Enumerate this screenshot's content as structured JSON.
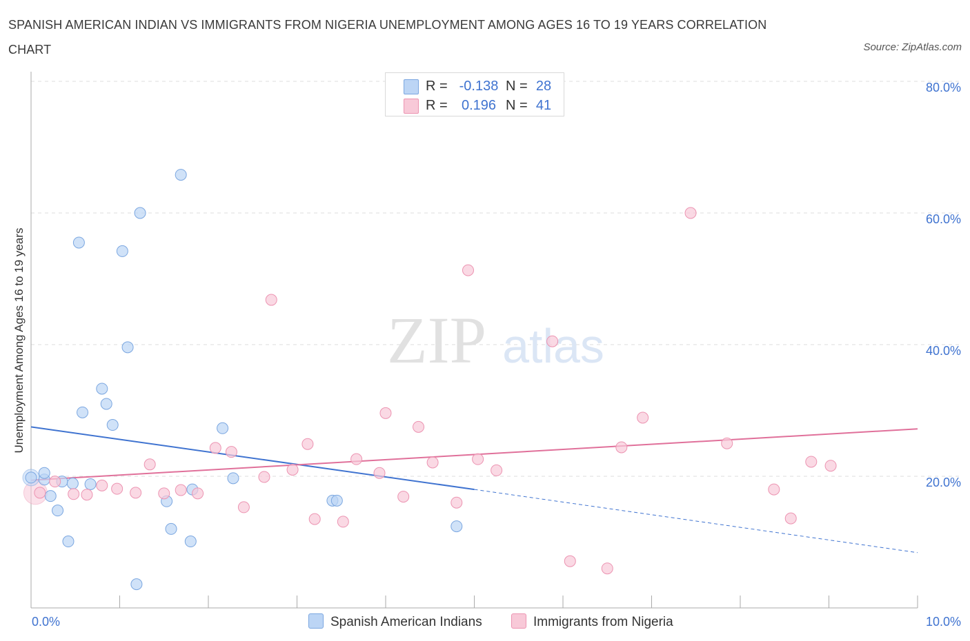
{
  "title": "SPANISH AMERICAN INDIAN VS IMMIGRANTS FROM NIGERIA UNEMPLOYMENT AMONG AGES 16 TO 19 YEARS CORRELATION CHART",
  "source": "Source: ZipAtlas.com",
  "watermark": {
    "zip": "ZIP",
    "atlas": "atlas"
  },
  "legend": {
    "rows": [
      {
        "r_label": "R =",
        "r_value": "-0.138",
        "n_label": "N =",
        "n_value": "28"
      },
      {
        "r_label": "R =",
        "r_value": "0.196",
        "n_label": "N =",
        "n_value": "41"
      }
    ]
  },
  "colors": {
    "blue_fill": "#bcd5f5",
    "blue_stroke": "#7aa6e0",
    "blue_line": "#3f73d0",
    "pink_fill": "#f8c9d8",
    "pink_stroke": "#ec93b1",
    "pink_line": "#e0709a",
    "axis_label": "#3f73d0",
    "grid": "#dddddd"
  },
  "chart_data": {
    "type": "scatter",
    "title": "SPANISH AMERICAN INDIAN VS IMMIGRANTS FROM NIGERIA UNEMPLOYMENT AMONG AGES 16 TO 19 YEARS CORRELATION CHART",
    "xlabel": "",
    "ylabel": "Unemployment Among Ages 16 to 19 years",
    "xlim": [
      0,
      10
    ],
    "ylim": [
      0,
      80
    ],
    "x_tick_labels": [
      "0.0%",
      "10.0%"
    ],
    "y_ticks": [
      20,
      40,
      60,
      80
    ],
    "y_tick_labels": [
      "20.0%",
      "40.0%",
      "60.0%",
      "80.0%"
    ],
    "grid": true,
    "series": [
      {
        "name": "Spanish American Indians",
        "color": "blue",
        "points": [
          [
            0.0,
            19.8
          ],
          [
            0.15,
            19.5
          ],
          [
            0.15,
            20.5
          ],
          [
            0.22,
            17.0
          ],
          [
            0.3,
            14.8
          ],
          [
            0.35,
            19.2
          ],
          [
            0.42,
            10.1
          ],
          [
            0.47,
            18.9
          ],
          [
            0.54,
            55.5
          ],
          [
            0.58,
            29.7
          ],
          [
            0.67,
            18.8
          ],
          [
            0.8,
            33.3
          ],
          [
            0.85,
            31.0
          ],
          [
            0.92,
            27.8
          ],
          [
            1.03,
            54.2
          ],
          [
            1.09,
            39.6
          ],
          [
            1.19,
            3.6
          ],
          [
            1.23,
            60.0
          ],
          [
            1.53,
            16.2
          ],
          [
            1.58,
            12.0
          ],
          [
            1.69,
            65.8
          ],
          [
            1.8,
            10.1
          ],
          [
            1.82,
            18.0
          ],
          [
            2.16,
            27.3
          ],
          [
            2.28,
            19.7
          ],
          [
            3.4,
            16.3
          ],
          [
            3.45,
            16.3
          ],
          [
            4.8,
            12.4
          ]
        ],
        "trend": {
          "x0": 0,
          "y0": 27.5,
          "x1": 5.0,
          "y1": 18.0,
          "dashed_to_x": 10,
          "dashed_to_y": 8.4
        }
      },
      {
        "name": "Immigrants from Nigeria",
        "color": "pink",
        "points": [
          [
            0.1,
            17.5
          ],
          [
            0.27,
            19.2
          ],
          [
            0.48,
            17.3
          ],
          [
            0.63,
            17.2
          ],
          [
            0.8,
            18.6
          ],
          [
            0.97,
            18.1
          ],
          [
            1.18,
            17.5
          ],
          [
            1.34,
            21.8
          ],
          [
            1.5,
            17.4
          ],
          [
            1.69,
            17.9
          ],
          [
            1.88,
            17.4
          ],
          [
            2.08,
            24.3
          ],
          [
            2.26,
            23.7
          ],
          [
            2.4,
            15.3
          ],
          [
            2.63,
            19.9
          ],
          [
            2.71,
            46.8
          ],
          [
            2.95,
            21.0
          ],
          [
            3.12,
            24.9
          ],
          [
            3.2,
            13.5
          ],
          [
            3.52,
            13.1
          ],
          [
            3.67,
            22.6
          ],
          [
            3.93,
            20.5
          ],
          [
            4.0,
            29.6
          ],
          [
            4.2,
            16.9
          ],
          [
            4.37,
            27.5
          ],
          [
            4.53,
            22.1
          ],
          [
            4.8,
            16.0
          ],
          [
            4.93,
            51.3
          ],
          [
            5.04,
            22.6
          ],
          [
            5.25,
            20.9
          ],
          [
            5.88,
            40.5
          ],
          [
            6.08,
            7.1
          ],
          [
            6.5,
            6.0
          ],
          [
            6.66,
            24.4
          ],
          [
            6.9,
            28.9
          ],
          [
            7.44,
            60.0
          ],
          [
            7.85,
            25.0
          ],
          [
            8.38,
            18.0
          ],
          [
            8.57,
            13.6
          ],
          [
            8.8,
            22.2
          ],
          [
            9.02,
            21.6
          ]
        ],
        "trend": {
          "x0": 0,
          "y0": 19.4,
          "x1": 10,
          "y1": 27.2
        }
      }
    ]
  }
}
